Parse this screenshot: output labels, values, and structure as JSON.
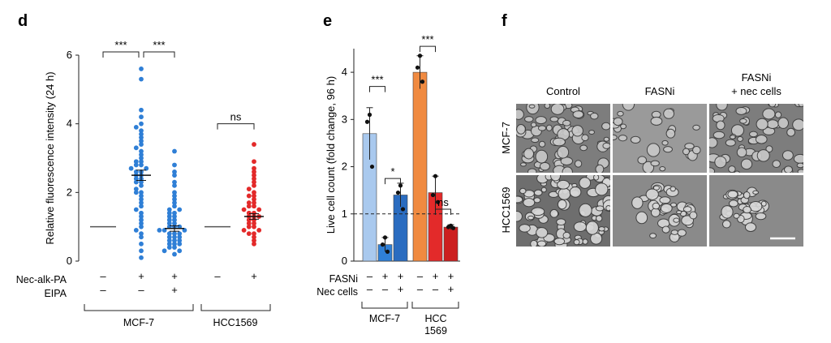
{
  "panels": {
    "d": {
      "letter": "d",
      "chart_data": {
        "type": "scatter",
        "ylabel": "Relative fluorescence intensity (24 h)",
        "ylim": [
          0,
          6
        ],
        "yticks": [
          "0",
          "2",
          "4",
          "6"
        ],
        "groups": [
          {
            "cell_line": "MCF-7",
            "nec": "–",
            "eipa": "–",
            "color": "#555555",
            "mean": 1.0
          },
          {
            "cell_line": "MCF-7",
            "nec": "+",
            "eipa": "–",
            "color": "#2f7fd6",
            "mean": 2.5,
            "sem": 0.15,
            "values": [
              5.6,
              5.3,
              4.4,
              4.2,
              4.0,
              3.9,
              3.8,
              3.7,
              3.6,
              3.5,
              3.4,
              3.3,
              3.2,
              3.1,
              3.0,
              2.9,
              2.9,
              2.8,
              2.8,
              2.7,
              2.7,
              2.6,
              2.6,
              2.5,
              2.5,
              2.4,
              2.4,
              2.3,
              2.3,
              2.2,
              2.1,
              2.0,
              2.0,
              1.9,
              1.8,
              1.7,
              1.6,
              1.5,
              1.4,
              1.3,
              1.2,
              1.1,
              1.0,
              0.9,
              0.8,
              0.7,
              0.5,
              0.3,
              0.1
            ]
          },
          {
            "cell_line": "MCF-7",
            "nec": "+",
            "eipa": "+",
            "color": "#2f7fd6",
            "mean": 0.95,
            "sem": 0.08,
            "values": [
              3.2,
              2.8,
              2.6,
              2.5,
              2.3,
              2.2,
              2.0,
              1.9,
              1.8,
              1.7,
              1.6,
              1.5,
              1.5,
              1.4,
              1.4,
              1.3,
              1.3,
              1.2,
              1.2,
              1.1,
              1.1,
              1.0,
              1.0,
              1.0,
              0.9,
              0.9,
              0.9,
              0.8,
              0.8,
              0.8,
              0.7,
              0.7,
              0.7,
              0.6,
              0.6,
              0.6,
              0.5,
              0.5,
              0.5,
              0.4,
              0.4,
              0.3,
              0.3,
              0.2
            ]
          },
          {
            "cell_line": "HCC1569",
            "nec": "–",
            "eipa": "",
            "color": "#555555",
            "mean": 1.0
          },
          {
            "cell_line": "HCC1569",
            "nec": "+",
            "eipa": "",
            "color": "#e32a2a",
            "mean": 1.3,
            "sem": 0.08,
            "values": [
              3.4,
              2.9,
              2.7,
              2.6,
              2.5,
              2.4,
              2.3,
              2.2,
              2.1,
              2.0,
              1.9,
              1.9,
              1.8,
              1.7,
              1.7,
              1.6,
              1.6,
              1.5,
              1.5,
              1.4,
              1.4,
              1.3,
              1.3,
              1.3,
              1.2,
              1.2,
              1.1,
              1.1,
              1.0,
              1.0,
              0.9,
              0.9,
              0.8,
              0.8,
              0.7,
              0.6,
              0.5
            ]
          }
        ],
        "significance": [
          {
            "from": 0,
            "to": 1,
            "label": "***"
          },
          {
            "from": 1,
            "to": 2,
            "label": "***"
          },
          {
            "from": 3,
            "to": 4,
            "label": "ns"
          }
        ],
        "row_labels": [
          "Nec-alk-PA",
          "EIPA"
        ],
        "cell_lines": [
          "MCF-7",
          "HCC1569"
        ]
      }
    },
    "e": {
      "letter": "e",
      "chart_data": {
        "type": "bar",
        "ylabel": "Live cell count (fold change, 96 h)",
        "ylim": [
          0,
          4.5
        ],
        "yticks": [
          "0",
          "1",
          "2",
          "3",
          "4"
        ],
        "reference_line": 1,
        "bars": [
          {
            "cell_line": "MCF-7",
            "fasni": "–",
            "nec": "–",
            "value": 2.7,
            "err": 0.55,
            "color": "#a9c9ee",
            "points": [
              3.1,
              2.95,
              2.0
            ]
          },
          {
            "cell_line": "MCF-7",
            "fasni": "+",
            "nec": "–",
            "value": 0.35,
            "err": 0.15,
            "color": "#2f7fd6",
            "points": [
              0.5,
              0.35,
              0.2
            ]
          },
          {
            "cell_line": "MCF-7",
            "fasni": "+",
            "nec": "+",
            "value": 1.4,
            "err": 0.25,
            "color": "#2a6cc0",
            "points": [
              1.6,
              1.45,
              1.1
            ]
          },
          {
            "cell_line": "HCC1569",
            "fasni": "–",
            "nec": "–",
            "value": 4.0,
            "err": 0.35,
            "color": "#f08a40",
            "points": [
              4.35,
              4.1,
              3.8
            ]
          },
          {
            "cell_line": "HCC1569",
            "fasni": "+",
            "nec": "–",
            "value": 1.45,
            "err": 0.35,
            "color": "#e32a2a",
            "points": [
              1.8,
              1.4,
              1.25
            ]
          },
          {
            "cell_line": "HCC1569",
            "fasni": "+",
            "nec": "+",
            "value": 0.72,
            "err": 0.05,
            "color": "#cc1f1f",
            "points": [
              0.75,
              0.72,
              0.7
            ]
          }
        ],
        "significance": [
          {
            "from": 0,
            "to": 1,
            "label": "***"
          },
          {
            "from": 1,
            "to": 2,
            "label": "*"
          },
          {
            "from": 3,
            "to": 4,
            "label": "***"
          },
          {
            "from": 4,
            "to": 5,
            "label": "ns"
          }
        ],
        "row_labels": [
          "FASNi",
          "Nec cells"
        ],
        "cell_lines": [
          "MCF-7",
          "HCC\n1569"
        ]
      }
    },
    "f": {
      "letter": "f",
      "columns": [
        "Control",
        "FASNi",
        "FASNi\n+ nec cells"
      ],
      "rows": [
        "MCF-7",
        "HCC1569"
      ]
    }
  }
}
